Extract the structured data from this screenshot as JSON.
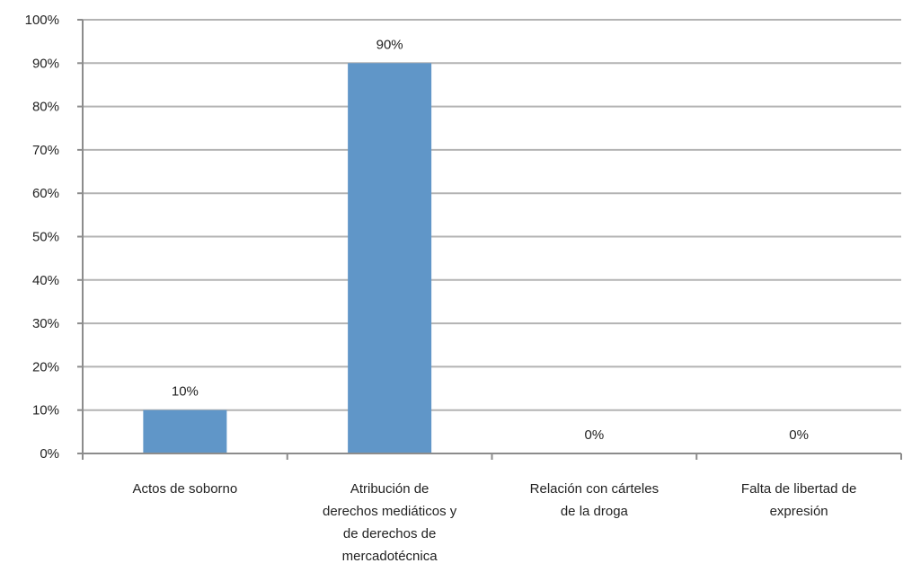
{
  "chart_data": {
    "type": "bar",
    "categories": [
      [
        "Actos de soborno"
      ],
      [
        "Atribución de",
        "derechos mediáticos y",
        "de derechos de",
        "mercadotécnica"
      ],
      [
        "Relación con cárteles",
        "de la droga"
      ],
      [
        "Falta de libertad de",
        "expresión"
      ]
    ],
    "values": [
      10,
      90,
      0,
      0
    ],
    "data_labels": [
      "10%",
      "90%",
      "0%",
      "0%"
    ],
    "yticks": [
      "0%",
      "10%",
      "20%",
      "30%",
      "40%",
      "50%",
      "60%",
      "70%",
      "80%",
      "90%",
      "100%"
    ],
    "ylim": [
      0,
      100
    ],
    "grid": true,
    "bar_color": "#6096c8",
    "grid_color": "#b3b3b3",
    "axis_color": "#8c8c8c",
    "title": "",
    "xlabel": "",
    "ylabel": ""
  }
}
